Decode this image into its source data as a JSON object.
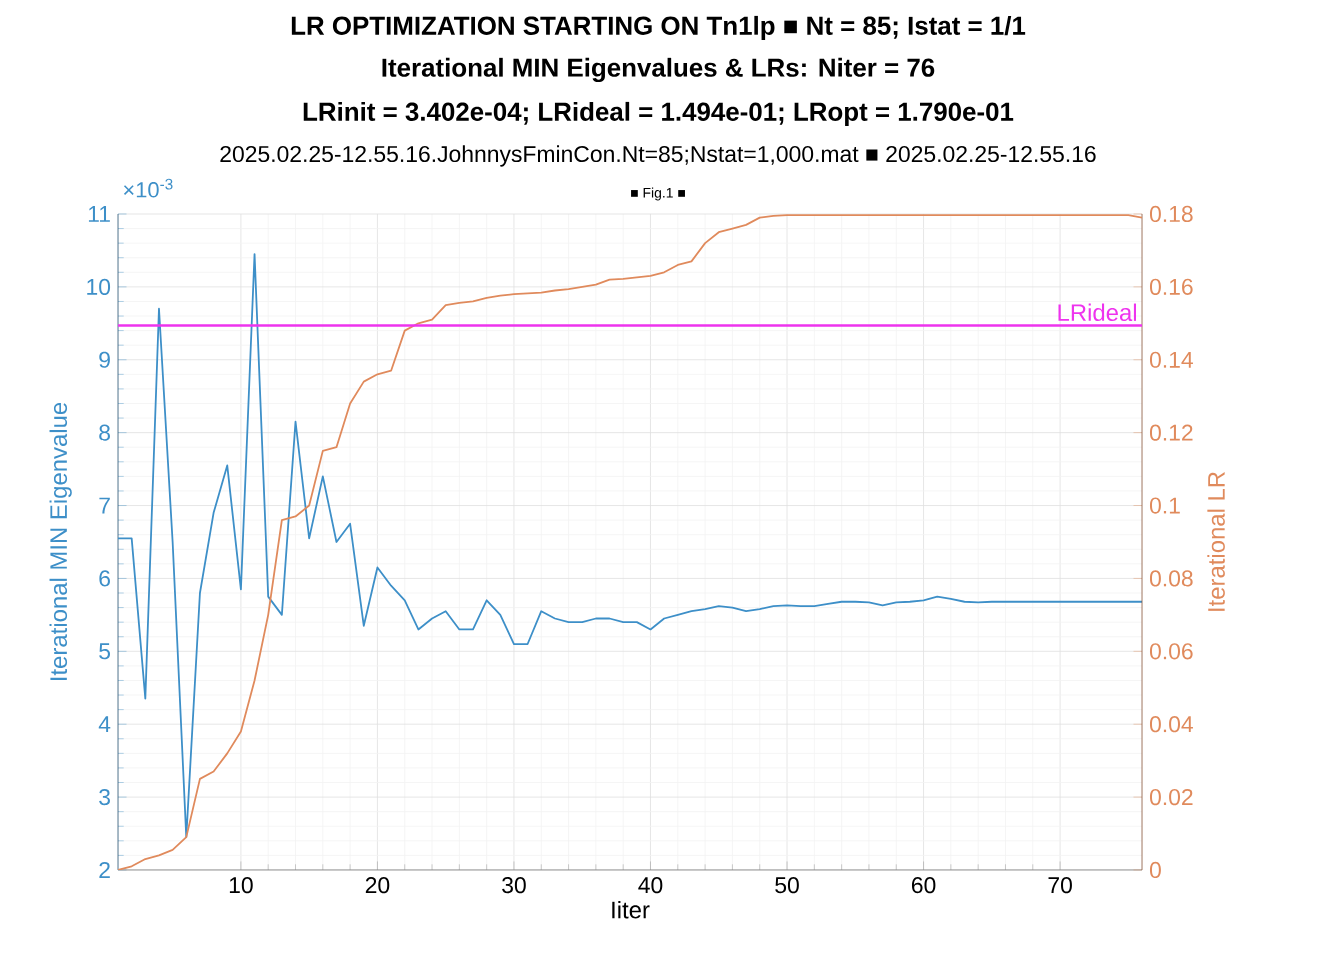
{
  "chart_data": {
    "type": "line",
    "title": "LR OPTIMIZATION STARTING ON Tn1lp ■ Nt = 85; Istat = 1/1",
    "subtitle": "Iterational MIN Eigenvalues & LRs: Niter = 76",
    "annotations": [
      "LRinit = 3.402e-04; LRideal = 1.494e-01; LRopt = 1.790e-01",
      "2025.02.25-12.55.16.JohnnysFminCon.Nt=85;Nstat=1,000.mat ■ 2025.02.25-12.55.16",
      "■ Fig.1 ■",
      "×10$^{-3}$"
    ],
    "xlabel": "Iiter",
    "ylabel": "Iterational MIN Eigenvalue",
    "y2label": "Iterational LR",
    "x": [
      1,
      2,
      3,
      4,
      5,
      6,
      7,
      8,
      9,
      10,
      11,
      12,
      13,
      14,
      15,
      16,
      17,
      18,
      19,
      20,
      21,
      22,
      23,
      24,
      25,
      26,
      27,
      28,
      29,
      30,
      31,
      32,
      33,
      34,
      35,
      36,
      37,
      38,
      39,
      40,
      41,
      42,
      43,
      44,
      45,
      46,
      47,
      48,
      49,
      50,
      51,
      52,
      53,
      54,
      55,
      56,
      57,
      58,
      59,
      60,
      61,
      62,
      63,
      64,
      65,
      66,
      67,
      68,
      69,
      70,
      71,
      72,
      73,
      74,
      75,
      76
    ],
    "series": [
      {
        "color": "#3d8fc8",
        "values": [
          6.55,
          6.55,
          4.35,
          9.7,
          6.5,
          2.45,
          5.8,
          6.9,
          7.55,
          5.85,
          10.45,
          5.75,
          5.5,
          8.15,
          6.55,
          7.4,
          6.5,
          6.75,
          5.35,
          6.15,
          5.9,
          5.7,
          5.3,
          5.45,
          5.55,
          5.3,
          5.3,
          5.7,
          5.5,
          5.1,
          5.1,
          5.55,
          5.45,
          5.4,
          5.4,
          5.45,
          5.45,
          5.4,
          5.4,
          5.3,
          5.45,
          5.5,
          5.55,
          5.58,
          5.62,
          5.6,
          5.55,
          5.58,
          5.62,
          5.63,
          5.62,
          5.62,
          5.65,
          5.68,
          5.68,
          5.67,
          5.63,
          5.67,
          5.68,
          5.7,
          5.75,
          5.72,
          5.68,
          5.67,
          5.68,
          5.68,
          5.68,
          5.68,
          5.68,
          5.68,
          5.68,
          5.68,
          5.68,
          5.68,
          5.68,
          5.68
        ]
      },
      {
        "color": "#e08a5c",
        "axis": "y2",
        "values": [
          0.0,
          0.001,
          0.003,
          0.004,
          0.0055,
          0.009,
          0.025,
          0.027,
          0.032,
          0.038,
          0.052,
          0.07,
          0.096,
          0.097,
          0.1,
          0.115,
          0.116,
          0.128,
          0.134,
          0.136,
          0.137,
          0.148,
          0.15,
          0.151,
          0.155,
          0.1556,
          0.156,
          0.157,
          0.1576,
          0.158,
          0.1582,
          0.1584,
          0.159,
          0.1594,
          0.16,
          0.1606,
          0.162,
          0.1622,
          0.1626,
          0.163,
          0.164,
          0.166,
          0.167,
          0.172,
          0.175,
          0.176,
          0.177,
          0.179,
          0.1795,
          0.1797,
          0.1797,
          0.1797,
          0.1797,
          0.1797,
          0.1797,
          0.1797,
          0.1797,
          0.1797,
          0.1797,
          0.1797,
          0.1797,
          0.1797,
          0.1797,
          0.1797,
          0.1797,
          0.1797,
          0.1797,
          0.1797,
          0.1797,
          0.1797,
          0.1797,
          0.1797,
          0.1797,
          0.1797,
          0.1797,
          0.179
        ]
      }
    ],
    "xlim": [
      1,
      76
    ],
    "xticks": [
      10,
      20,
      30,
      40,
      50,
      60,
      70
    ],
    "ylim": [
      2,
      11
    ],
    "yticks": [
      2,
      3,
      4,
      5,
      6,
      7,
      8,
      9,
      10,
      11
    ],
    "y2lim": [
      0,
      0.18
    ],
    "y2ticks": [
      0,
      0.02,
      0.04,
      0.06,
      0.08,
      0.1,
      0.12,
      0.14,
      0.16,
      0.18
    ],
    "ref_lines": [
      {
        "axis": "y2",
        "value": 0.1494,
        "label": "LRideal",
        "color": "#ee33ee"
      }
    ],
    "grid": true
  }
}
